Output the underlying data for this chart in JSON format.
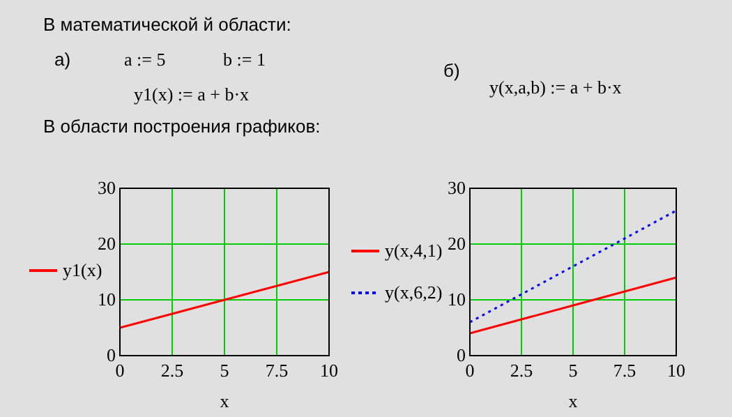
{
  "chart_data": [
    {
      "type": "line",
      "xlabel": "x",
      "xlim": [
        0,
        10
      ],
      "ylim": [
        0,
        30
      ],
      "xticks": [
        0,
        2.5,
        5,
        7.5,
        10
      ],
      "yticks": [
        0,
        10,
        20,
        30
      ],
      "grid": true,
      "legend": "left",
      "line_style": "solid",
      "annotations": [
        "В математической й области:",
        "а)",
        "a := 5",
        "b := 1",
        "y1(x) := a + b·x",
        "В области построения графиков:"
      ],
      "series": [
        {
          "name": "y1(x)",
          "color": "#ff0000",
          "x": [
            0,
            5,
            10
          ],
          "values": [
            5,
            10,
            15
          ]
        }
      ]
    },
    {
      "type": "line",
      "xlabel": "x",
      "xlim": [
        0,
        10
      ],
      "ylim": [
        0,
        30
      ],
      "xticks": [
        0,
        2.5,
        5,
        7.5,
        10
      ],
      "yticks": [
        0,
        10,
        20,
        30
      ],
      "grid": true,
      "legend": "left",
      "annotations": [
        "б)",
        "y(x,a,b) := a + b·x"
      ],
      "series": [
        {
          "name": "y(x,4,1)",
          "color": "#ff0000",
          "x": [
            0,
            5,
            10
          ],
          "values": [
            4,
            9,
            14
          ],
          "line_style": "solid"
        },
        {
          "name": "y(x,6,2)",
          "color": "#0000ff",
          "x": [
            0,
            5,
            10
          ],
          "values": [
            6,
            16,
            26
          ],
          "line_style": "dotted"
        }
      ]
    }
  ]
}
